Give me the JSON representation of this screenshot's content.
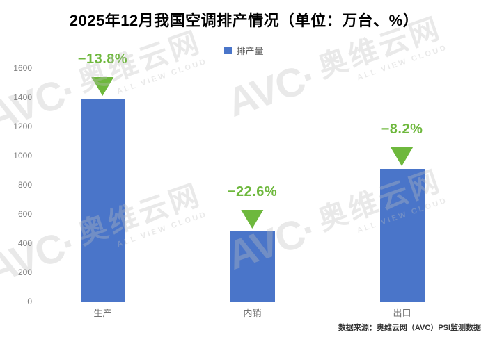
{
  "title": "2025年12月我国空调排产情况（单位：万台、%）",
  "legend": {
    "label": "排产量",
    "swatch_color": "#4a75c9"
  },
  "chart_data": {
    "type": "bar",
    "title": "2025年12月我国空调排产情况（单位：万台、%）",
    "categories": [
      "生产",
      "内销",
      "出口"
    ],
    "series": [
      {
        "name": "排产量",
        "values": [
          1390,
          480,
          910
        ]
      }
    ],
    "change_labels": [
      "−13.8%",
      "−22.6%",
      "−8.2%"
    ],
    "yticks": [
      0,
      200,
      400,
      600,
      800,
      1000,
      1200,
      1400,
      1600
    ],
    "ylim": [
      0,
      1600
    ],
    "xlabel": "",
    "ylabel": "",
    "grid": false,
    "legend_position": "top-center",
    "bar_color": "#4a75c9",
    "change_color": "#6eb83d"
  },
  "source": "数据来源：奥维云网（AVC）PSI监测数据",
  "watermark": {
    "logo": "AVC·",
    "brand": "奥维云网",
    "subtitle": "ALL VIEW CLOUD"
  }
}
